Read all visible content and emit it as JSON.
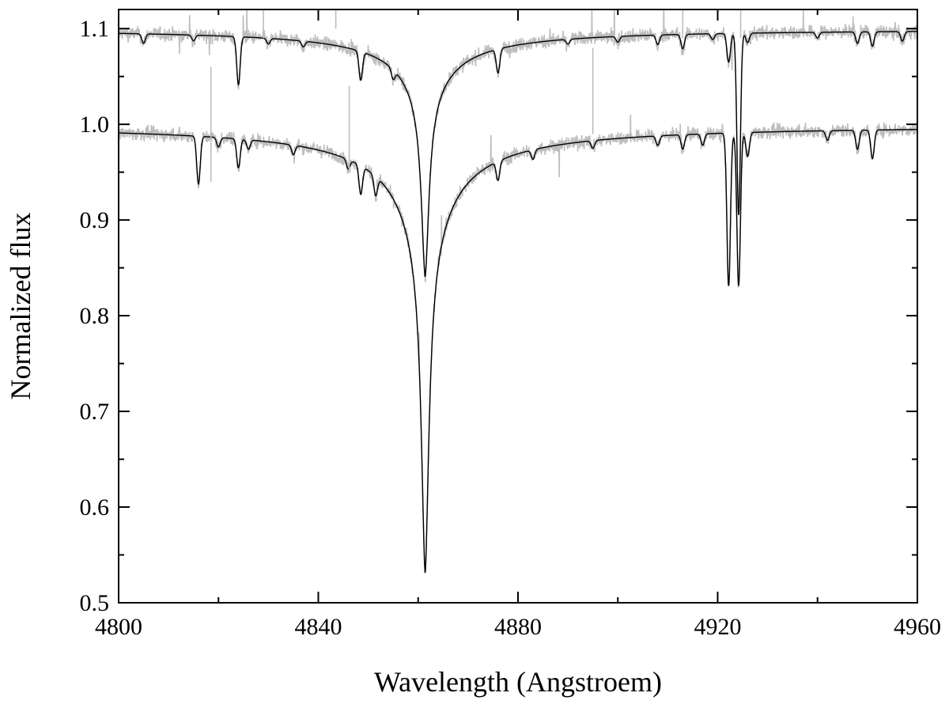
{
  "chart_data": {
    "type": "line",
    "title": "",
    "xlabel": "Wavelength (Angstroem)",
    "ylabel": "Normalized flux",
    "xlim": [
      4800,
      4960
    ],
    "ylim": [
      0.5,
      1.12
    ],
    "x_ticks": [
      4800,
      4840,
      4880,
      4920,
      4960
    ],
    "x_tick_labels": [
      "4800",
      "4840",
      "4880",
      "4920",
      "4960"
    ],
    "y_ticks": [
      0.5,
      0.6,
      0.7,
      0.8,
      0.9,
      1.0,
      1.1
    ],
    "y_tick_labels": [
      "0.5",
      "0.6",
      "0.7",
      "0.8",
      "0.9",
      "1.0",
      "1.1"
    ],
    "grid": false,
    "legend": "none",
    "colors": {
      "observed": "#bdbdbd",
      "model": "#000000"
    },
    "series": [
      {
        "offset": 0.1,
        "continuum": 1.1,
        "line_center": 4861.4,
        "line_depth": 0.26,
        "x": [
          4800,
          4810,
          4820,
          4830,
          4840,
          4845,
          4850,
          4855,
          4858,
          4860,
          4861.4,
          4863,
          4865,
          4868,
          4872,
          4876,
          4880,
          4890,
          4900,
          4910,
          4920,
          4923,
          4924.2,
          4926,
          4940,
          4960
        ],
        "model": [
          1.097,
          1.096,
          1.094,
          1.091,
          1.085,
          1.077,
          1.063,
          1.035,
          1.0,
          0.96,
          0.842,
          0.96,
          1.0,
          1.027,
          1.048,
          1.061,
          1.07,
          1.084,
          1.092,
          1.095,
          1.097,
          1.068,
          0.91,
          1.097,
          1.099,
          1.1
        ]
      },
      {
        "offset": 0.0,
        "continuum": 1.0,
        "line_center": 4861.4,
        "line_depth": 0.47,
        "x": [
          4800,
          4810,
          4820,
          4830,
          4840,
          4845,
          4850,
          4855,
          4858,
          4860,
          4861.4,
          4863,
          4865,
          4868,
          4872,
          4876,
          4880,
          4890,
          4900,
          4910,
          4920,
          4922.2,
          4924.2,
          4926,
          4940,
          4960
        ],
        "model": [
          0.996,
          0.995,
          0.992,
          0.986,
          0.973,
          0.955,
          0.924,
          0.861,
          0.79,
          0.72,
          0.53,
          0.72,
          0.8,
          0.86,
          0.91,
          0.937,
          0.953,
          0.976,
          0.988,
          0.993,
          0.995,
          0.84,
          0.84,
          0.997,
          0.999,
          1.0
        ]
      }
    ]
  }
}
